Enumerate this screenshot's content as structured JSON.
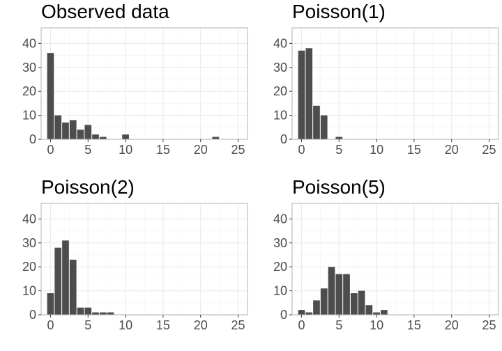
{
  "chart_data": [
    {
      "type": "bar",
      "title": "Observed data",
      "x": [
        0,
        1,
        2,
        3,
        4,
        5,
        6,
        7,
        8,
        9,
        10,
        11,
        12,
        13,
        14,
        15,
        16,
        17,
        18,
        19,
        20,
        21,
        22,
        23,
        24,
        25
      ],
      "values": [
        36,
        10,
        7,
        8,
        4,
        6,
        2,
        1,
        0,
        0,
        2,
        0,
        0,
        0,
        0,
        0,
        0,
        0,
        0,
        0,
        0,
        0,
        1,
        0,
        0,
        0
      ],
      "xlabel": "",
      "ylabel": "",
      "xlim": [
        -1.25,
        26.25
      ],
      "ylim": [
        0,
        46.5
      ],
      "xticks": [
        0,
        5,
        10,
        15,
        20,
        25
      ],
      "yticks": [
        0,
        10,
        20,
        30,
        40
      ],
      "grid": true
    },
    {
      "type": "bar",
      "title": "Poisson(1)",
      "x": [
        0,
        1,
        2,
        3,
        4,
        5,
        6,
        7,
        8,
        9,
        10,
        11,
        12,
        13,
        14,
        15,
        16,
        17,
        18,
        19,
        20,
        21,
        22,
        23,
        24,
        25
      ],
      "values": [
        37,
        38,
        14,
        10,
        0,
        1,
        0,
        0,
        0,
        0,
        0,
        0,
        0,
        0,
        0,
        0,
        0,
        0,
        0,
        0,
        0,
        0,
        0,
        0,
        0,
        0
      ],
      "xlabel": "",
      "ylabel": "",
      "xlim": [
        -1.25,
        26.25
      ],
      "ylim": [
        0,
        46.5
      ],
      "xticks": [
        0,
        5,
        10,
        15,
        20,
        25
      ],
      "yticks": [
        0,
        10,
        20,
        30,
        40
      ],
      "grid": true
    },
    {
      "type": "bar",
      "title": "Poisson(2)",
      "x": [
        0,
        1,
        2,
        3,
        4,
        5,
        6,
        7,
        8,
        9,
        10,
        11,
        12,
        13,
        14,
        15,
        16,
        17,
        18,
        19,
        20,
        21,
        22,
        23,
        24,
        25
      ],
      "values": [
        9,
        28,
        31,
        23,
        3,
        3,
        1,
        1,
        1,
        0,
        0,
        0,
        0,
        0,
        0,
        0,
        0,
        0,
        0,
        0,
        0,
        0,
        0,
        0,
        0,
        0
      ],
      "xlabel": "",
      "ylabel": "",
      "xlim": [
        -1.25,
        26.25
      ],
      "ylim": [
        0,
        46.5
      ],
      "xticks": [
        0,
        5,
        10,
        15,
        20,
        25
      ],
      "yticks": [
        0,
        10,
        20,
        30,
        40
      ],
      "grid": true
    },
    {
      "type": "bar",
      "title": "Poisson(5)",
      "x": [
        0,
        1,
        2,
        3,
        4,
        5,
        6,
        7,
        8,
        9,
        10,
        11,
        12,
        13,
        14,
        15,
        16,
        17,
        18,
        19,
        20,
        21,
        22,
        23,
        24,
        25
      ],
      "values": [
        2,
        1,
        6,
        11,
        20,
        17,
        17,
        9,
        10,
        4,
        1,
        2,
        0,
        0,
        0,
        0,
        0,
        0,
        0,
        0,
        0,
        0,
        0,
        0,
        0,
        0
      ],
      "xlabel": "",
      "ylabel": "",
      "xlim": [
        -1.25,
        26.25
      ],
      "ylim": [
        0,
        46.5
      ],
      "xticks": [
        0,
        5,
        10,
        15,
        20,
        25
      ],
      "yticks": [
        0,
        10,
        20,
        30,
        40
      ],
      "grid": true
    }
  ],
  "colors": {
    "bar": "#4d4d4d",
    "panel_border": "#b3b3b3",
    "grid_major": "#ebebeb",
    "grid_minor": "#f5f5f5",
    "tick": "#333333",
    "tick_label": "#4d4d4d",
    "title": "#000000",
    "background": "#ffffff"
  }
}
